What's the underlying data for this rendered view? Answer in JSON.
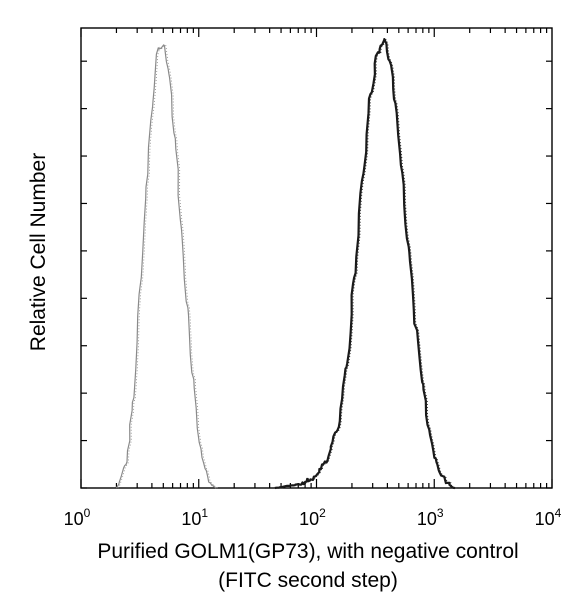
{
  "chart_data": {
    "type": "line",
    "title": "",
    "xlabel": "Purified GOLM1(GP73), with negative control",
    "xlabel_line2": "(FITC second step)",
    "ylabel": "Relative Cell Number",
    "x_scale": "log",
    "xlim": [
      1,
      10000
    ],
    "ylim": [
      0,
      100
    ],
    "grid": false,
    "legend": "none",
    "x_tick_labels": [
      {
        "base": "10",
        "exp": "0"
      },
      {
        "base": "10",
        "exp": "1"
      },
      {
        "base": "10",
        "exp": "2"
      },
      {
        "base": "10",
        "exp": "3"
      },
      {
        "base": "10",
        "exp": "4"
      }
    ],
    "series": [
      {
        "color": "#8a8a8a",
        "x": [
          2.0,
          2.4,
          2.8,
          3.2,
          3.6,
          4.0,
          4.5,
          5.0,
          5.6,
          6.3,
          7.1,
          8.0,
          9.0,
          10.0,
          11.2,
          12.6,
          14.1
        ],
        "y": [
          0,
          5,
          20,
          45,
          67,
          85,
          98,
          99,
          93,
          78,
          58,
          40,
          24,
          11,
          5,
          1,
          0
        ]
      },
      {
        "color": "#1a1a1a",
        "x": [
          45,
          60,
          75,
          90,
          100,
          120,
          150,
          180,
          210,
          250,
          290,
          330,
          380,
          420,
          470,
          520,
          600,
          700,
          800,
          900,
          1000,
          1150,
          1300,
          1500
        ],
        "y": [
          0,
          0.5,
          1,
          2,
          3,
          6,
          13,
          27,
          47,
          70,
          88,
          97,
          100,
          95,
          86,
          72,
          54,
          36,
          23,
          13,
          7,
          3,
          1,
          0
        ]
      }
    ]
  }
}
